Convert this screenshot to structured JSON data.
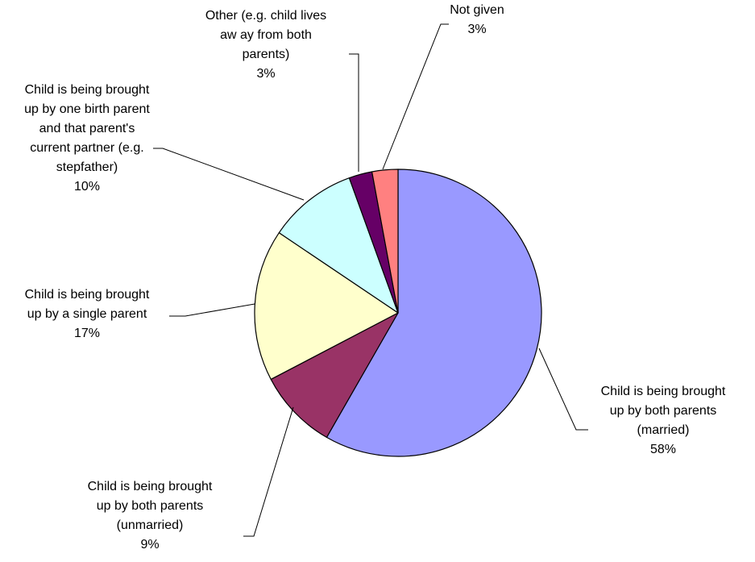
{
  "chart_data": {
    "type": "pie",
    "title": "",
    "start_angle_deg": 0,
    "direction": "clockwise",
    "slices": [
      {
        "label_lines": [
          "Child is being brought",
          "up by both parents",
          "(married)"
        ],
        "pct_label": "58%",
        "value": 58,
        "color": "#9999ff"
      },
      {
        "label_lines": [
          "Child is being brought",
          "up by both parents",
          "(unmarried)"
        ],
        "pct_label": "9%",
        "value": 9,
        "color": "#993366"
      },
      {
        "label_lines": [
          "Child is being brought",
          "up by a single parent"
        ],
        "pct_label": "17%",
        "value": 17,
        "color": "#ffffcc"
      },
      {
        "label_lines": [
          "Child is being brought",
          "up by one birth parent",
          "and that parent's",
          "current partner (e.g.",
          "stepfather)"
        ],
        "pct_label": "10%",
        "value": 10,
        "color": "#ccffff"
      },
      {
        "label_lines": [
          "Other (e.g. child lives",
          "aw ay from both",
          "parents)"
        ],
        "pct_label": "3%",
        "value": 2.6,
        "color": "#660066"
      },
      {
        "label_lines": [
          "Not given"
        ],
        "pct_label": "3%",
        "value": 2.9,
        "color": "#ff8080"
      }
    ]
  }
}
